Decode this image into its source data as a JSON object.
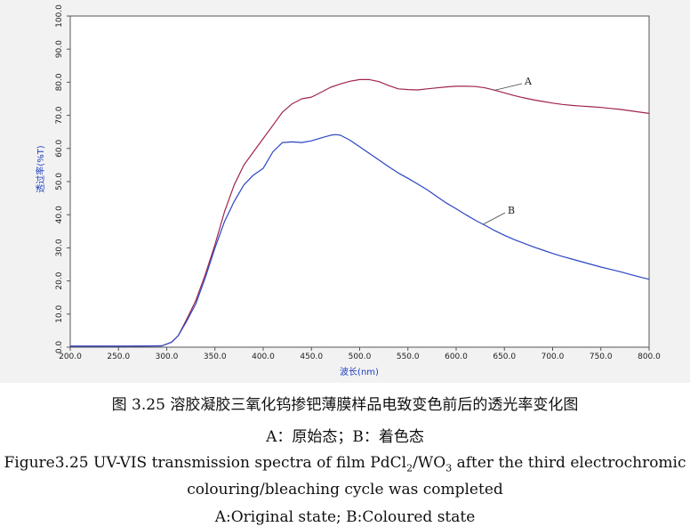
{
  "chart_data": {
    "type": "line",
    "xlabel": "波长(nm)",
    "ylabel": "透过率(%T)",
    "xlim": [
      200,
      800
    ],
    "ylim": [
      0,
      100
    ],
    "x_ticks": [
      "200.0",
      "250.0",
      "300.0",
      "350.0",
      "400.0",
      "450.0",
      "500.0",
      "550.0",
      "600.0",
      "650.0",
      "700.0",
      "750.0",
      "800.0"
    ],
    "y_ticks": [
      "0.0",
      "10.0",
      "20.0",
      "30.0",
      "40.0",
      "50.0",
      "60.0",
      "70.0",
      "80.0",
      "90.0",
      "100.0"
    ],
    "grid": false,
    "series": [
      {
        "name": "A",
        "color": "#a0244a",
        "x": [
          200,
          260,
          295,
          305,
          312,
          320,
          330,
          340,
          350,
          360,
          370,
          380,
          390,
          400,
          410,
          420,
          430,
          440,
          450,
          460,
          470,
          480,
          490,
          500,
          510,
          520,
          530,
          540,
          550,
          560,
          570,
          580,
          590,
          600,
          610,
          620,
          630,
          640,
          650,
          660,
          670,
          680,
          690,
          700,
          710,
          720,
          730,
          740,
          750,
          760,
          770,
          780,
          790,
          800
        ],
        "y": [
          0.3,
          0.3,
          0.4,
          1.5,
          3.5,
          8,
          14,
          22,
          31,
          41,
          49,
          55,
          59,
          63,
          67,
          71,
          73.5,
          75,
          75.5,
          77,
          78.5,
          79.5,
          80.3,
          80.8,
          80.8,
          80.2,
          79,
          78,
          77.8,
          77.7,
          78,
          78.3,
          78.6,
          78.8,
          78.8,
          78.7,
          78.3,
          77.6,
          76.8,
          76,
          75.3,
          74.7,
          74.2,
          73.7,
          73.3,
          73,
          72.8,
          72.6,
          72.4,
          72.1,
          71.8,
          71.4,
          71,
          70.6
        ]
      },
      {
        "name": "B",
        "color": "#2b45c4",
        "x": [
          200,
          260,
          295,
          305,
          312,
          320,
          330,
          340,
          350,
          360,
          370,
          380,
          390,
          400,
          410,
          420,
          430,
          440,
          450,
          460,
          470,
          475,
          480,
          490,
          500,
          510,
          520,
          530,
          540,
          550,
          560,
          570,
          580,
          590,
          600,
          610,
          620,
          630,
          640,
          650,
          660,
          670,
          680,
          690,
          700,
          710,
          720,
          730,
          740,
          750,
          760,
          770,
          780,
          790,
          800
        ],
        "y": [
          0.3,
          0.3,
          0.4,
          1.5,
          3.5,
          7.5,
          13,
          21,
          30,
          38,
          44,
          49,
          52,
          54,
          59,
          61.8,
          62,
          61.8,
          62.3,
          63.2,
          64,
          64.2,
          64,
          62.5,
          60.5,
          58.5,
          56.5,
          54.5,
          52.6,
          51,
          49.3,
          47.5,
          45.5,
          43.5,
          41.8,
          40,
          38.3,
          36.8,
          35.2,
          33.8,
          32.5,
          31.4,
          30.3,
          29.3,
          28.3,
          27.4,
          26.6,
          25.8,
          25,
          24.2,
          23.5,
          22.8,
          22,
          21.2,
          20.5
        ]
      }
    ],
    "annotations": [
      "A",
      "B"
    ]
  },
  "caption": {
    "cn_prefix": "图 3.25  ",
    "cn_title": "溶胶凝胶三氧化钨掺钯薄膜样品电致变色前后的透光率变化图",
    "cn_legend": "A：原始态；B：着色态",
    "en_line1_prefix": "Figure3.25 UV-VIS transmission spectra of film PdCl",
    "en_sub1": "2",
    "en_mid": "/WO",
    "en_sub2": "3",
    "en_line1_suffix": " after the third electrochromic",
    "en_line2": "colouring/bleaching cycle was completed",
    "en_line3": "A:Original state; B:Coloured state"
  }
}
